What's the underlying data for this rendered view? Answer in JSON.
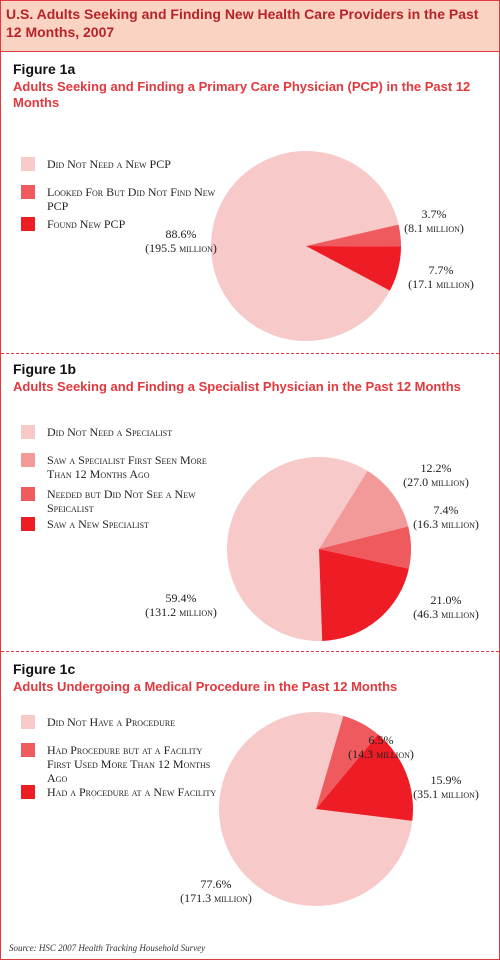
{
  "title": "U.S. Adults Seeking and Finding New Health Care Providers in the Past 12 Months, 2007",
  "source": "Source: HSC 2007 Health Tracking Household Survey",
  "chart_data": [
    {
      "type": "pie",
      "label": "Figure 1a",
      "title": "Adults Seeking and Finding a Primary Care Physician (PCP) in the Past 12 Months",
      "categories": [
        "Did Not Need a New PCP",
        "Looked For But Did Not Find New PCP",
        "Found New PCP"
      ],
      "values": [
        88.6,
        3.7,
        7.7
      ],
      "value_labels": [
        "88.6%",
        "3.7%",
        "7.7%"
      ],
      "count_labels": [
        "(195.5 million)",
        "(8.1 million)",
        "(17.1 million)"
      ],
      "colors": [
        "#f7c9c9",
        "#ef5a5f",
        "#ee1c25"
      ],
      "startangle": 118
    },
    {
      "type": "pie",
      "label": "Figure 1b",
      "title": "Adults Seeking and Finding a Specialist Physician in the Past 12 Months",
      "categories": [
        "Did Not Need a Specialist",
        "Saw a Specialist First Seen More Than 12 Months Ago",
        "Needed but Did Not See a New Speicalist",
        "Saw a New Specialist"
      ],
      "values": [
        59.4,
        12.2,
        7.4,
        21.0
      ],
      "value_labels": [
        "59.4%",
        "12.2%",
        "7.4%",
        "21.0%"
      ],
      "count_labels": [
        "(131.2 million)",
        "(27.0 million)",
        "(16.3 million)",
        "(46.3 million)"
      ],
      "colors": [
        "#f7c9c9",
        "#f29a9a",
        "#ef5a5f",
        "#ee1c25"
      ],
      "startangle": 178
    },
    {
      "type": "pie",
      "label": "Figure 1c",
      "title": "Adults Undergoing a Medical Procedure in the Past 12 Months",
      "categories": [
        "Did Not Have a Procedure",
        "Had Procedure but at a Facility First Used More Than 12 Months Ago",
        "Had a Procedure at a New Facility"
      ],
      "values": [
        77.6,
        6.5,
        15.9
      ],
      "value_labels": [
        "77.6%",
        "6.5%",
        "15.9%"
      ],
      "count_labels": [
        "(171.3 million)",
        "(14.3 million)",
        "(35.1 million)"
      ],
      "colors": [
        "#f7c9c9",
        "#ef5a5f",
        "#ee1c25"
      ],
      "startangle": 97
    }
  ]
}
